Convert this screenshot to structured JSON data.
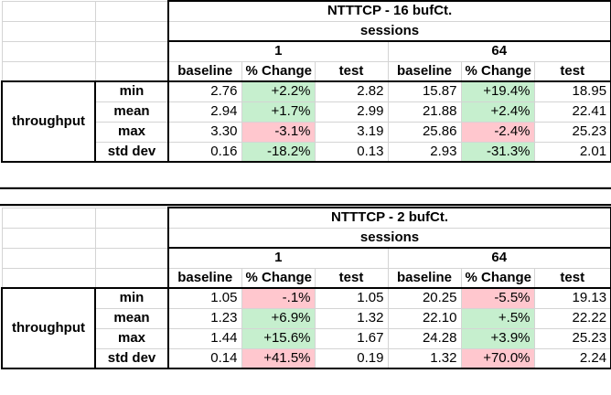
{
  "tables": [
    {
      "title": "NTTTCP - 16 bufCt.",
      "sessions_label": "sessions",
      "groups": [
        "1",
        "64"
      ],
      "columns": [
        "baseline",
        "% Change",
        "test",
        "baseline",
        "% Change",
        "test"
      ],
      "row_group_label": "throughput",
      "rows": [
        {
          "label": "min",
          "values": [
            "2.76",
            "+2.2%",
            "2.82",
            "15.87",
            "+19.4%",
            "18.95"
          ],
          "change_status": [
            "positive",
            "positive"
          ]
        },
        {
          "label": "mean",
          "values": [
            "2.94",
            "+1.7%",
            "2.99",
            "21.88",
            "+2.4%",
            "22.41"
          ],
          "change_status": [
            "positive",
            "positive"
          ]
        },
        {
          "label": "max",
          "values": [
            "3.30",
            "-3.1%",
            "3.19",
            "25.86",
            "-2.4%",
            "25.23"
          ],
          "change_status": [
            "negative",
            "negative"
          ]
        },
        {
          "label": "std dev",
          "values": [
            "0.16",
            "-18.2%",
            "0.13",
            "2.93",
            "-31.3%",
            "2.01"
          ],
          "change_status": [
            "positive",
            "positive"
          ]
        }
      ]
    },
    {
      "title": "NTTTCP - 2 bufCt.",
      "sessions_label": "sessions",
      "groups": [
        "1",
        "64"
      ],
      "columns": [
        "baseline",
        "% Change",
        "test",
        "baseline",
        "% Change",
        "test"
      ],
      "row_group_label": "throughput",
      "rows": [
        {
          "label": "min",
          "values": [
            "1.05",
            "-.1%",
            "1.05",
            "20.25",
            "-5.5%",
            "19.13"
          ],
          "change_status": [
            "negative",
            "negative"
          ]
        },
        {
          "label": "mean",
          "values": [
            "1.23",
            "+6.9%",
            "1.32",
            "22.10",
            "+.5%",
            "22.22"
          ],
          "change_status": [
            "positive",
            "positive"
          ]
        },
        {
          "label": "max",
          "values": [
            "1.44",
            "+15.6%",
            "1.67",
            "24.28",
            "+3.9%",
            "25.23"
          ],
          "change_status": [
            "positive",
            "positive"
          ]
        },
        {
          "label": "std dev",
          "values": [
            "0.14",
            "+41.5%",
            "0.19",
            "1.32",
            "+70.0%",
            "2.24"
          ],
          "change_status": [
            "negative",
            "negative"
          ]
        }
      ]
    }
  ],
  "colors": {
    "positive": "#c6efce",
    "negative": "#ffc7ce",
    "gridline": "#d4d4d4",
    "border": "#000000"
  }
}
